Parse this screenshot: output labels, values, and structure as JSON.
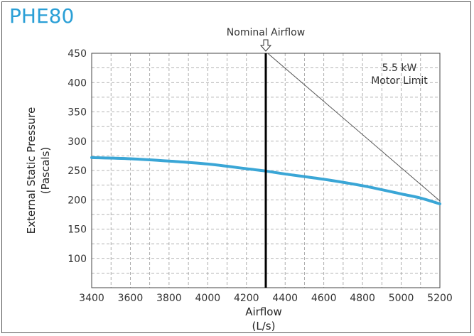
{
  "chart_data": {
    "type": "line",
    "title": "PHE80",
    "title_color": "#2a9fd6",
    "xlabel": "Airflow",
    "xlabel_unit": "(L/s)",
    "ylabel": "External Static Pressure",
    "ylabel_unit": "(Pascals)",
    "xlim": [
      3400,
      5200
    ],
    "ylim": [
      50,
      450
    ],
    "x_ticks": [
      3400,
      3600,
      3800,
      4000,
      4200,
      4400,
      4600,
      4800,
      5000,
      5200
    ],
    "y_ticks": [
      100,
      150,
      200,
      250,
      300,
      350,
      400,
      450
    ],
    "grid": "dashed",
    "series": [
      {
        "color": "#3aa6d6",
        "x": [
          3400,
          3600,
          3800,
          4000,
          4200,
          4300,
          4400,
          4600,
          4800,
          5000,
          5100,
          5200
        ],
        "y": [
          272,
          270,
          266,
          261,
          253,
          249,
          244,
          235,
          224,
          210,
          203,
          193
        ]
      }
    ],
    "motor_limit": {
      "label_line1": "5.5 kW",
      "label_line2": "Motor Limit",
      "color": "#555555",
      "x": [
        4310,
        5200
      ],
      "y": [
        450,
        198
      ]
    },
    "nominal_airflow": {
      "label": "Nominal Airflow",
      "x": 4300,
      "color": "#000000"
    }
  }
}
